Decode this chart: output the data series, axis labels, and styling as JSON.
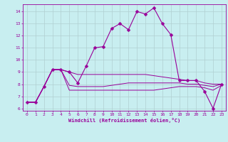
{
  "xlabel": "Windchill (Refroidissement éolien,°C)",
  "xlim": [
    -0.5,
    23.5
  ],
  "ylim": [
    5.8,
    14.6
  ],
  "yticks": [
    6,
    7,
    8,
    9,
    10,
    11,
    12,
    13,
    14
  ],
  "xticks": [
    0,
    1,
    2,
    3,
    4,
    5,
    6,
    7,
    8,
    9,
    10,
    11,
    12,
    13,
    14,
    15,
    16,
    17,
    18,
    19,
    20,
    21,
    22,
    23
  ],
  "bg_color": "#c8eef0",
  "grid_color": "#b0cfd1",
  "line_color": "#990099",
  "line1_x": [
    0,
    1,
    2,
    3,
    4,
    5,
    6,
    7,
    8,
    9,
    10,
    11,
    12,
    13,
    14,
    15,
    16,
    17,
    18,
    19,
    20,
    21,
    22,
    23
  ],
  "line1_y": [
    6.5,
    6.5,
    7.8,
    9.2,
    9.2,
    9.0,
    8.1,
    9.5,
    11.0,
    11.1,
    12.6,
    13.0,
    12.5,
    14.0,
    13.8,
    14.3,
    13.0,
    12.1,
    8.3,
    8.3,
    8.3,
    7.4,
    6.0,
    8.0
  ],
  "line2_x": [
    0,
    1,
    2,
    3,
    4,
    5,
    6,
    7,
    8,
    9,
    10,
    11,
    12,
    13,
    14,
    15,
    16,
    17,
    18,
    19,
    20,
    21,
    22,
    23
  ],
  "line2_y": [
    6.5,
    6.5,
    7.8,
    9.2,
    9.2,
    9.0,
    8.8,
    8.8,
    8.8,
    8.8,
    8.8,
    8.8,
    8.8,
    8.8,
    8.8,
    8.7,
    8.6,
    8.5,
    8.4,
    8.3,
    8.3,
    8.1,
    8.0,
    8.0
  ],
  "line3_x": [
    0,
    1,
    2,
    3,
    4,
    5,
    6,
    7,
    8,
    9,
    10,
    11,
    12,
    13,
    14,
    15,
    16,
    17,
    18,
    19,
    20,
    21,
    22,
    23
  ],
  "line3_y": [
    6.5,
    6.5,
    7.8,
    9.2,
    9.2,
    7.9,
    7.8,
    7.8,
    7.8,
    7.8,
    7.9,
    8.0,
    8.1,
    8.1,
    8.1,
    8.1,
    8.1,
    8.1,
    8.1,
    8.0,
    8.0,
    7.9,
    7.8,
    8.0
  ],
  "line4_x": [
    0,
    1,
    2,
    3,
    4,
    5,
    6,
    7,
    8,
    9,
    10,
    11,
    12,
    13,
    14,
    15,
    16,
    17,
    18,
    19,
    20,
    21,
    22,
    23
  ],
  "line4_y": [
    6.5,
    6.5,
    7.8,
    9.2,
    9.2,
    7.5,
    7.5,
    7.5,
    7.5,
    7.5,
    7.5,
    7.5,
    7.5,
    7.5,
    7.5,
    7.5,
    7.6,
    7.7,
    7.8,
    7.8,
    7.8,
    7.7,
    7.5,
    7.9
  ]
}
